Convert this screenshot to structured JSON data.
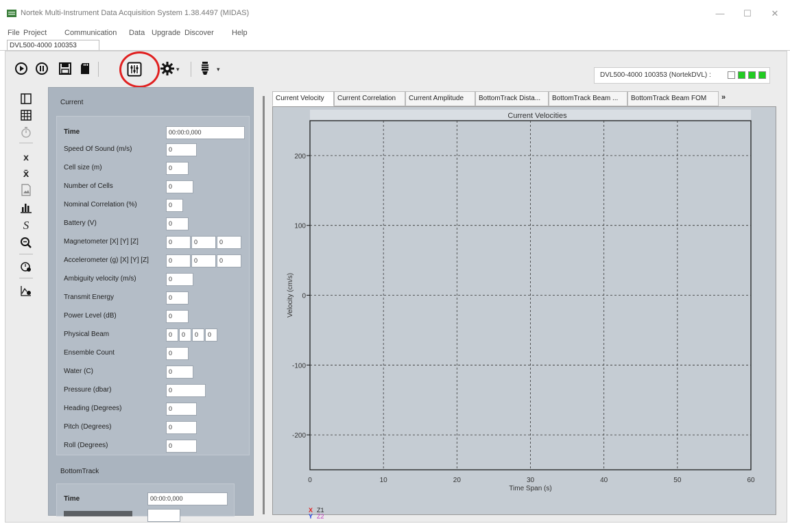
{
  "window": {
    "title": "Nortek Multi-Instrument Data Acquisition System 1.38.4497 (MIDAS)",
    "minimize_glyph": "—",
    "maximize_glyph": "☐",
    "close_glyph": "✕"
  },
  "menu": [
    "File",
    "Project",
    "Communication",
    "Data",
    "Upgrade",
    "Discover",
    "Help"
  ],
  "doc_tab": "DVL500-4000 100353",
  "toolbar": {
    "icons": [
      "play-circle-icon",
      "pause-circle-icon",
      "save-icon",
      "sd-card-icon",
      "mixer-sliders-icon",
      "gear-icon",
      "instrument-icon"
    ],
    "device_status_label": "DVL500-4000 100353 (NortekDVL) :",
    "status_leds": [
      {
        "name": "white",
        "color": "#ffffff"
      },
      {
        "name": "green-1",
        "color": "#22cc22"
      },
      {
        "name": "green-2",
        "color": "#22cc22"
      },
      {
        "name": "green-3",
        "color": "#22cc22"
      }
    ]
  },
  "side_tools": [
    {
      "icon": "panel-icon",
      "glyph": "◧"
    },
    {
      "icon": "grid-icon",
      "glyph": "▦"
    },
    {
      "icon": "stopwatch-icon",
      "glyph": "⏱"
    },
    {
      "icon": "x-icon",
      "glyph": "x"
    },
    {
      "icon": "x-bar-icon",
      "glyph": "x̄"
    },
    {
      "icon": "image-icon",
      "glyph": "▨"
    },
    {
      "icon": "bar-chart-icon",
      "glyph": "▟"
    },
    {
      "icon": "script-s-icon",
      "glyph": "S"
    },
    {
      "icon": "zoom-icon",
      "glyph": "🔍"
    },
    {
      "icon": "clock-gear-icon",
      "glyph": "⚙"
    },
    {
      "icon": "chart-gear-icon",
      "glyph": "📈"
    }
  ],
  "current_group": {
    "title": "Current",
    "fields": [
      {
        "label": "Time",
        "values": [
          "00:00:0,000"
        ]
      },
      {
        "label": "Speed Of Sound (m/s)",
        "values": [
          "0"
        ]
      },
      {
        "label": "Cell size (m)",
        "values": [
          "0"
        ]
      },
      {
        "label": "Number of Cells",
        "values": [
          "0"
        ]
      },
      {
        "label": "Nominal Correlation (%)",
        "values": [
          "0"
        ]
      },
      {
        "label": "Battery (V)",
        "values": [
          "0"
        ]
      },
      {
        "label": "Magnetometer [X] [Y] [Z]",
        "values": [
          "0",
          "0",
          "0"
        ]
      },
      {
        "label": "Accelerometer (g) [X] [Y] [Z]",
        "values": [
          "0",
          "0",
          "0"
        ]
      },
      {
        "label": "Ambiguity velocity (m/s)",
        "values": [
          "0"
        ]
      },
      {
        "label": "Transmit Energy",
        "values": [
          "0"
        ]
      },
      {
        "label": "Power Level (dB)",
        "values": [
          "0"
        ]
      },
      {
        "label": "Physical Beam",
        "values": [
          "0",
          "0",
          "0",
          "0"
        ]
      },
      {
        "label": "Ensemble Count",
        "values": [
          "0"
        ]
      },
      {
        "label": "Water (C)",
        "values": [
          "0"
        ]
      },
      {
        "label": "Pressure (dbar)",
        "values": [
          "0"
        ]
      },
      {
        "label": "Heading (Degrees)",
        "values": [
          "0"
        ]
      },
      {
        "label": "Pitch (Degrees)",
        "values": [
          "0"
        ]
      },
      {
        "label": "Roll (Degrees)",
        "values": [
          "0"
        ]
      }
    ]
  },
  "bottomtrack_group": {
    "title": "BottomTrack",
    "fields": [
      {
        "label": "Time",
        "values": [
          "00:00:0,000"
        ]
      }
    ]
  },
  "tabs": [
    {
      "label": "Current Velocity",
      "active": true
    },
    {
      "label": "Current Correlation",
      "active": false
    },
    {
      "label": "Current Amplitude",
      "active": false
    },
    {
      "label": "BottomTrack Dista...",
      "active": false
    },
    {
      "label": "BottomTrack Beam ...",
      "active": false
    },
    {
      "label": "BottomTrack Beam FOM",
      "active": false
    }
  ],
  "tab_overflow": "»",
  "chart_data": {
    "type": "line",
    "title": "Current Velocities",
    "xlabel": "Time Span (s)",
    "ylabel": "Velocity (cm/s)",
    "xlim": [
      0,
      60
    ],
    "ylim": [
      -250,
      250
    ],
    "xticks": [
      0,
      10,
      20,
      30,
      40,
      50,
      60
    ],
    "yticks": [
      200,
      100,
      0,
      -100,
      -200
    ],
    "grid": true,
    "legend_position": "bottom-left",
    "series": [
      {
        "name": "Z1",
        "marker": "X",
        "color": "#e02020",
        "values": []
      },
      {
        "name": "Z2",
        "marker": "Y",
        "color": "#2040e0",
        "values": []
      }
    ]
  }
}
